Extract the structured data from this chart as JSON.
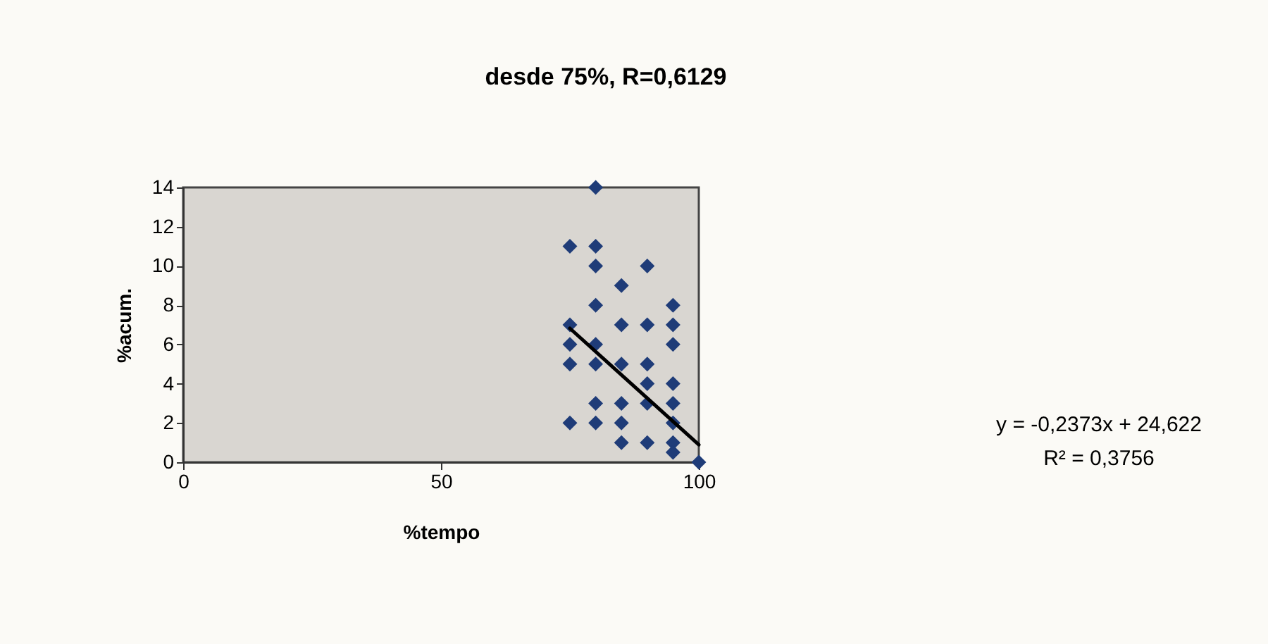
{
  "chart_data": {
    "type": "scatter",
    "title": "desde 75%, R=0,6129",
    "xlabel": "%tempo",
    "ylabel": "%acum.",
    "xlim": [
      0,
      100
    ],
    "xticks": [
      0,
      50,
      100
    ],
    "ylim": [
      0,
      14
    ],
    "yticks": [
      0,
      2,
      4,
      6,
      8,
      10,
      12,
      14
    ],
    "grid": false,
    "series": [
      {
        "type": "scatter",
        "marker": "diamond",
        "color": "#1f3c78",
        "x": [
          75,
          75,
          75,
          75,
          75,
          80,
          80,
          80,
          80,
          80,
          80,
          80,
          80,
          85,
          85,
          85,
          85,
          85,
          85,
          90,
          90,
          90,
          90,
          90,
          90,
          95,
          95,
          95,
          95,
          95,
          95,
          95,
          95,
          100
        ],
        "values": [
          11,
          7,
          6,
          5,
          2,
          14,
          11,
          10,
          8,
          6,
          5,
          3,
          2,
          9,
          7,
          5,
          3,
          2,
          1,
          10,
          7,
          5,
          4,
          3,
          1,
          8,
          7,
          6,
          4,
          3,
          2,
          1,
          0.5,
          0
        ]
      },
      {
        "type": "line",
        "color": "#000000",
        "x": [
          75,
          100
        ],
        "values": [
          6.82,
          0.89
        ]
      }
    ],
    "annotations": [
      "y = -0,2373x + 24,622",
      "R² = 0,3756"
    ]
  }
}
